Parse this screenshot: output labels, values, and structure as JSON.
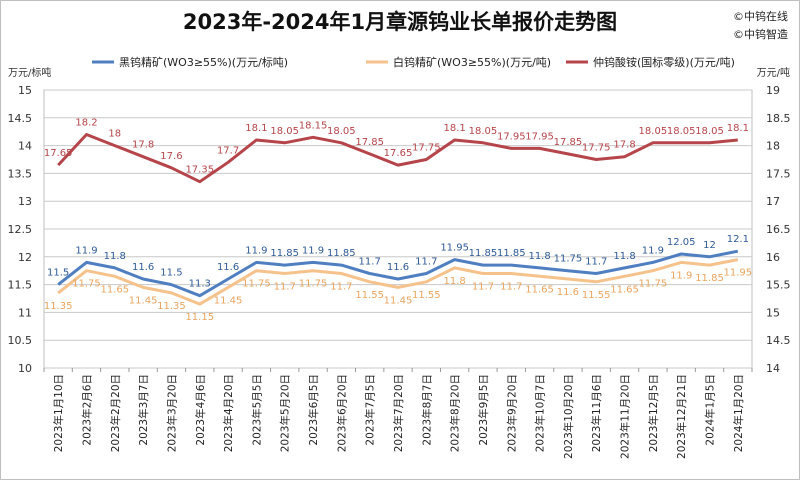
{
  "header": {
    "title": "2023年-2024年1月章源钨业长单报价走势图",
    "brand_line1": "©中钨在线",
    "brand_line2": "©中钨智造"
  },
  "chart_data": {
    "type": "line",
    "title": "2023年-2024年1月章源钨业长单报价走势图",
    "ylabel_left": "万元/标吨",
    "ylabel_right": "万元/吨",
    "ylim_left": [
      10,
      15
    ],
    "ylim_right": [
      14,
      19
    ],
    "yticks_left": [
      "10",
      "10.5",
      "11",
      "11.5",
      "12",
      "12.5",
      "13",
      "13.5",
      "14",
      "14.5",
      "15"
    ],
    "yticks_right": [
      "14",
      "14.5",
      "15",
      "15.5",
      "16",
      "16.5",
      "17",
      "17.5",
      "18",
      "18.5",
      "19"
    ],
    "grid": true,
    "legend_position": "top",
    "categories": [
      "2023年1月10日",
      "2023年2月6日",
      "2023年2月20日",
      "2023年3月7日",
      "2023年3月20日",
      "2023年4月6日",
      "2023年4月20日",
      "2023年5月5日",
      "2023年5月20日",
      "2023年6月5日",
      "2023年6月20日",
      "2023年7月5日",
      "2023年7月20日",
      "2023年8月7日",
      "2023年8月20日",
      "2023年9月5日",
      "2023年9月20日",
      "2023年10月7日",
      "2023年10月20日",
      "2023年11月6日",
      "2023年11月20日",
      "2023年12月5日",
      "2023年12月21日",
      "2024年1月5日",
      "2024年1月20日"
    ],
    "series": [
      {
        "name": "黑钨精矿(WO3≥55%)(万元/标吨)",
        "axis": "left",
        "color": "#4f7fc0",
        "label_color": "#2f5a96",
        "values": [
          11.5,
          11.9,
          11.8,
          11.6,
          11.5,
          11.3,
          11.6,
          11.9,
          11.85,
          11.9,
          11.85,
          11.7,
          11.6,
          11.7,
          11.95,
          11.85,
          11.85,
          11.8,
          11.75,
          11.7,
          11.8,
          11.9,
          12.05,
          12,
          12.1
        ],
        "labels": [
          "11.5",
          "11.9",
          "11.8",
          "11.6",
          "11.5",
          "11.3",
          "11.6",
          "11.9",
          "11.85",
          "11.9",
          "11.85",
          "11.7",
          "11.6",
          "11.7",
          "11.95",
          "11.85",
          "11.85",
          "11.8",
          "11.75",
          "11.7",
          "11.8",
          "11.9",
          "12.05",
          "12",
          "12.1"
        ]
      },
      {
        "name": "白钨精矿(WO3≥55%)(万元/吨)",
        "axis": "left",
        "color": "#f5c28c",
        "label_color": "#e8a45e",
        "values": [
          11.35,
          11.75,
          11.65,
          11.45,
          11.35,
          11.15,
          11.45,
          11.75,
          11.7,
          11.75,
          11.7,
          11.55,
          11.45,
          11.55,
          11.8,
          11.7,
          11.7,
          11.65,
          11.6,
          11.55,
          11.65,
          11.75,
          11.9,
          11.85,
          11.95
        ],
        "labels": [
          "11.35",
          "11.75",
          "11.65",
          "11.45",
          "11.35",
          "11.15",
          "11.45",
          "11.75",
          "11.7",
          "11.75",
          "11.7",
          "11.55",
          "11.45",
          "11.55",
          "11.8",
          "11.7",
          "11.7",
          "11.65",
          "11.6",
          "11.55",
          "11.65",
          "11.75",
          "11.9",
          "11.85",
          "11.95"
        ]
      },
      {
        "name": "仲钨酸铵(国标零级)(万元/吨)",
        "axis": "right",
        "color": "#b5454a",
        "label_color": "#b5454a",
        "values": [
          17.65,
          18.2,
          18,
          17.8,
          17.6,
          17.35,
          17.7,
          18.1,
          18.05,
          18.15,
          18.05,
          17.85,
          17.65,
          17.75,
          18.1,
          18.05,
          17.95,
          17.95,
          17.85,
          17.75,
          17.8,
          18.05,
          18.05,
          18.05,
          18.1
        ],
        "labels": [
          "17.65",
          "18.2",
          "18",
          "17.8",
          "17.6",
          "17.35",
          "17.7",
          "18.1",
          "18.05",
          "18.15",
          "18.05",
          "17.85",
          "17.65",
          "17.75",
          "18.1",
          "18.05",
          "17.95",
          "17.95",
          "17.85",
          "17.75",
          "17.8",
          "18.05",
          "18.05",
          "18.05",
          "18.1"
        ]
      }
    ]
  }
}
